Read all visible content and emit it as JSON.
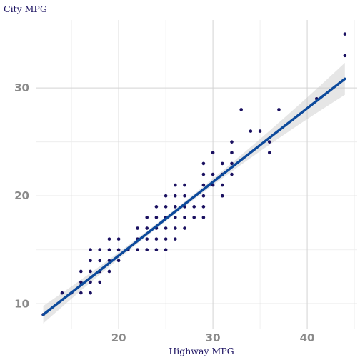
{
  "chart_data": {
    "type": "scatter",
    "xlabel": "Highway MPG",
    "ylabel": "City MPG",
    "xlim": [
      11.2,
      45.3
    ],
    "ylim": [
      7.7,
      36.3
    ],
    "x_ticks": [
      20,
      30,
      40
    ],
    "y_ticks": [
      10,
      20,
      30
    ],
    "x_minor_ticks": [
      15,
      25,
      35,
      45
    ],
    "y_minor_ticks": [
      15,
      25,
      35
    ],
    "grid": true,
    "point_color": "#1a1060",
    "line_color": "#0d4a9c",
    "band_color": "#c8c8c8",
    "points": [
      [
        12,
        9
      ],
      [
        14,
        11
      ],
      [
        15,
        11
      ],
      [
        16,
        11
      ],
      [
        17,
        11
      ],
      [
        16,
        12
      ],
      [
        17,
        12
      ],
      [
        18,
        12
      ],
      [
        16,
        13
      ],
      [
        17,
        13
      ],
      [
        18,
        13
      ],
      [
        19,
        13
      ],
      [
        17,
        14
      ],
      [
        18,
        14
      ],
      [
        19,
        14
      ],
      [
        20,
        14
      ],
      [
        17,
        15
      ],
      [
        18,
        15
      ],
      [
        19,
        15
      ],
      [
        20,
        15
      ],
      [
        21,
        15
      ],
      [
        22,
        15
      ],
      [
        23,
        15
      ],
      [
        24,
        15
      ],
      [
        25,
        15
      ],
      [
        19,
        16
      ],
      [
        20,
        16
      ],
      [
        22,
        16
      ],
      [
        23,
        16
      ],
      [
        24,
        16
      ],
      [
        25,
        16
      ],
      [
        26,
        16
      ],
      [
        22,
        17
      ],
      [
        23,
        17
      ],
      [
        24,
        17
      ],
      [
        25,
        17
      ],
      [
        26,
        17
      ],
      [
        27,
        17
      ],
      [
        23,
        18
      ],
      [
        24,
        18
      ],
      [
        25,
        18
      ],
      [
        26,
        18
      ],
      [
        27,
        18
      ],
      [
        28,
        18
      ],
      [
        29,
        18
      ],
      [
        24,
        19
      ],
      [
        25,
        19
      ],
      [
        26,
        19
      ],
      [
        27,
        19
      ],
      [
        28,
        19
      ],
      [
        29,
        19
      ],
      [
        25,
        20
      ],
      [
        26,
        20
      ],
      [
        27,
        20
      ],
      [
        29,
        20
      ],
      [
        31,
        20
      ],
      [
        26,
        21
      ],
      [
        27,
        21
      ],
      [
        29,
        21
      ],
      [
        30,
        21
      ],
      [
        31,
        21
      ],
      [
        29,
        22
      ],
      [
        30,
        22
      ],
      [
        31,
        22
      ],
      [
        32,
        22
      ],
      [
        29,
        23
      ],
      [
        31,
        23
      ],
      [
        32,
        23
      ],
      [
        30,
        24
      ],
      [
        32,
        24
      ],
      [
        36,
        24
      ],
      [
        32,
        25
      ],
      [
        36,
        25
      ],
      [
        34,
        26
      ],
      [
        35,
        26
      ],
      [
        33,
        28
      ],
      [
        37,
        28
      ],
      [
        41,
        29
      ],
      [
        44,
        33
      ],
      [
        44,
        35
      ]
    ],
    "fit": {
      "x": [
        12,
        44
      ],
      "y": [
        8.99,
        30.85
      ]
    }
  }
}
